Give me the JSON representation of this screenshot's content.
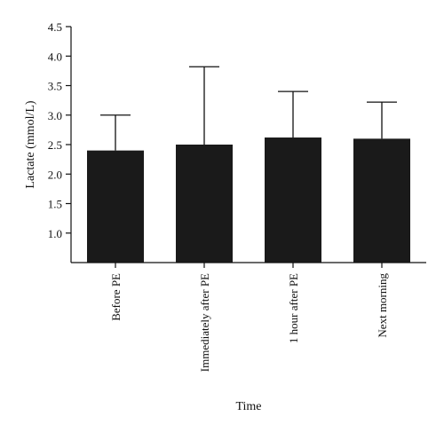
{
  "chart_data": {
    "type": "bar",
    "categories": [
      "Before PE",
      "Immediately after PE",
      "1 hour after PE",
      "Next morning"
    ],
    "values": [
      2.4,
      2.5,
      2.62,
      2.6
    ],
    "error_upper": [
      3.0,
      3.82,
      3.4,
      3.22
    ],
    "ylim": [
      0.5,
      4.5
    ],
    "yticks": [
      "1.0",
      "1.5",
      "2.0",
      "2.5",
      "3.0",
      "3.5",
      "4.0",
      "4.5"
    ],
    "ylabel": "Lactate (mmol/L)",
    "xlabel": "Time",
    "grid": false,
    "bar_color": "#1a1a1a",
    "axis_color": "#111111"
  }
}
